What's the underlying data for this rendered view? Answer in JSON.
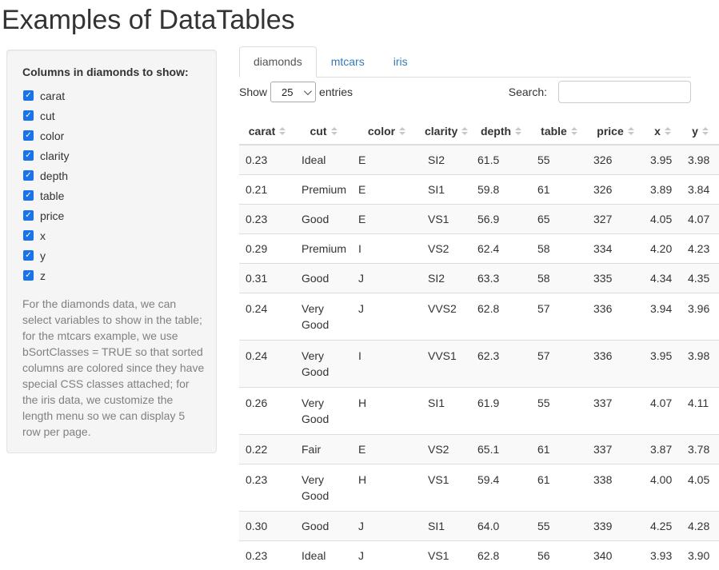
{
  "page": {
    "title": "Examples of DataTables"
  },
  "sidebar": {
    "label": "Columns in diamonds to show:",
    "checkboxes": [
      {
        "label": "carat",
        "checked": true
      },
      {
        "label": "cut",
        "checked": true
      },
      {
        "label": "color",
        "checked": true
      },
      {
        "label": "clarity",
        "checked": true
      },
      {
        "label": "depth",
        "checked": true
      },
      {
        "label": "table",
        "checked": true
      },
      {
        "label": "price",
        "checked": true
      },
      {
        "label": "x",
        "checked": true
      },
      {
        "label": "y",
        "checked": true
      },
      {
        "label": "z",
        "checked": true
      }
    ],
    "help_text": "For the diamonds data, we can select variables to show in the table; for the mtcars example, we use bSortClasses = TRUE so that sorted columns are colored since they have special CSS classes attached; for the iris data, we customize the length menu so we can display 5 row per page."
  },
  "tabs": [
    {
      "id": "diamonds",
      "label": "diamonds",
      "active": true
    },
    {
      "id": "mtcars",
      "label": "mtcars",
      "active": false
    },
    {
      "id": "iris",
      "label": "iris",
      "active": false
    }
  ],
  "controls": {
    "show_label": "Show",
    "page_length": "25",
    "entries_label": "entries",
    "search_label": "Search:",
    "search_value": ""
  },
  "table": {
    "columns": [
      "carat",
      "cut",
      "color",
      "clarity",
      "depth",
      "table",
      "price",
      "x",
      "y"
    ],
    "rows": [
      [
        "0.23",
        "Ideal",
        "E",
        "SI2",
        "61.5",
        "55",
        "326",
        "3.95",
        "3.98"
      ],
      [
        "0.21",
        "Premium",
        "E",
        "SI1",
        "59.8",
        "61",
        "326",
        "3.89",
        "3.84"
      ],
      [
        "0.23",
        "Good",
        "E",
        "VS1",
        "56.9",
        "65",
        "327",
        "4.05",
        "4.07"
      ],
      [
        "0.29",
        "Premium",
        "I",
        "VS2",
        "62.4",
        "58",
        "334",
        "4.20",
        "4.23"
      ],
      [
        "0.31",
        "Good",
        "J",
        "SI2",
        "63.3",
        "58",
        "335",
        "4.34",
        "4.35"
      ],
      [
        "0.24",
        "Very Good",
        "J",
        "VVS2",
        "62.8",
        "57",
        "336",
        "3.94",
        "3.96"
      ],
      [
        "0.24",
        "Very Good",
        "I",
        "VVS1",
        "62.3",
        "57",
        "336",
        "3.95",
        "3.98"
      ],
      [
        "0.26",
        "Very Good",
        "H",
        "SI1",
        "61.9",
        "55",
        "337",
        "4.07",
        "4.11"
      ],
      [
        "0.22",
        "Fair",
        "E",
        "VS2",
        "65.1",
        "61",
        "337",
        "3.87",
        "3.78"
      ],
      [
        "0.23",
        "Very Good",
        "H",
        "VS1",
        "59.4",
        "61",
        "338",
        "4.00",
        "4.05"
      ],
      [
        "0.30",
        "Good",
        "J",
        "SI1",
        "64.0",
        "55",
        "339",
        "4.25",
        "4.28"
      ],
      [
        "0.23",
        "Ideal",
        "J",
        "VS1",
        "62.8",
        "56",
        "340",
        "3.93",
        "3.90"
      ]
    ]
  },
  "colors": {
    "link": "#337ab7",
    "active_tab_text": "#555555",
    "checkbox": "#1a73e8",
    "row_stripe": "#f9f9f9",
    "table_border": "#dddddd",
    "help_text": "#808080",
    "body_text": "#333333"
  }
}
